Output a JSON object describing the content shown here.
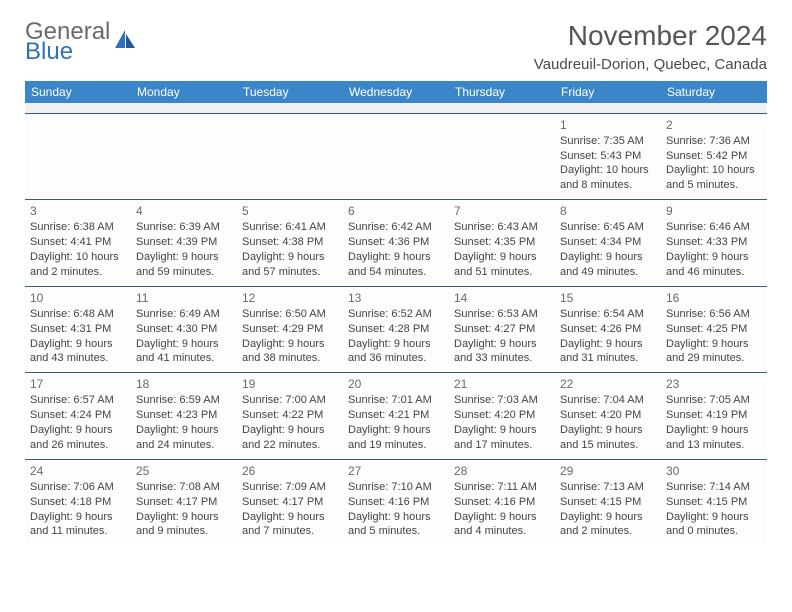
{
  "logo": {
    "line1": "General",
    "line2": "Blue"
  },
  "title": "November 2024",
  "location": "Vaudreuil-Dorion, Quebec, Canada",
  "colors": {
    "header_bg": "#3b86c8",
    "header_text": "#ffffff",
    "border": "#3b5a78",
    "logo_gray": "#6a6a6a",
    "logo_blue": "#2e72b8",
    "cell_bg": "#fdfdfd",
    "spacer_bg": "#eef0f2",
    "body_text": "#444444"
  },
  "fonts": {
    "title_size_pt": 21,
    "location_size_pt": 11,
    "header_size_pt": 9,
    "cell_size_pt": 8
  },
  "weekdays": [
    "Sunday",
    "Monday",
    "Tuesday",
    "Wednesday",
    "Thursday",
    "Friday",
    "Saturday"
  ],
  "weeks": [
    [
      null,
      null,
      null,
      null,
      null,
      {
        "n": "1",
        "sunrise": "7:35 AM",
        "sunset": "5:43 PM",
        "daylight": "10 hours and 8 minutes."
      },
      {
        "n": "2",
        "sunrise": "7:36 AM",
        "sunset": "5:42 PM",
        "daylight": "10 hours and 5 minutes."
      }
    ],
    [
      {
        "n": "3",
        "sunrise": "6:38 AM",
        "sunset": "4:41 PM",
        "daylight": "10 hours and 2 minutes."
      },
      {
        "n": "4",
        "sunrise": "6:39 AM",
        "sunset": "4:39 PM",
        "daylight": "9 hours and 59 minutes."
      },
      {
        "n": "5",
        "sunrise": "6:41 AM",
        "sunset": "4:38 PM",
        "daylight": "9 hours and 57 minutes."
      },
      {
        "n": "6",
        "sunrise": "6:42 AM",
        "sunset": "4:36 PM",
        "daylight": "9 hours and 54 minutes."
      },
      {
        "n": "7",
        "sunrise": "6:43 AM",
        "sunset": "4:35 PM",
        "daylight": "9 hours and 51 minutes."
      },
      {
        "n": "8",
        "sunrise": "6:45 AM",
        "sunset": "4:34 PM",
        "daylight": "9 hours and 49 minutes."
      },
      {
        "n": "9",
        "sunrise": "6:46 AM",
        "sunset": "4:33 PM",
        "daylight": "9 hours and 46 minutes."
      }
    ],
    [
      {
        "n": "10",
        "sunrise": "6:48 AM",
        "sunset": "4:31 PM",
        "daylight": "9 hours and 43 minutes."
      },
      {
        "n": "11",
        "sunrise": "6:49 AM",
        "sunset": "4:30 PM",
        "daylight": "9 hours and 41 minutes."
      },
      {
        "n": "12",
        "sunrise": "6:50 AM",
        "sunset": "4:29 PM",
        "daylight": "9 hours and 38 minutes."
      },
      {
        "n": "13",
        "sunrise": "6:52 AM",
        "sunset": "4:28 PM",
        "daylight": "9 hours and 36 minutes."
      },
      {
        "n": "14",
        "sunrise": "6:53 AM",
        "sunset": "4:27 PM",
        "daylight": "9 hours and 33 minutes."
      },
      {
        "n": "15",
        "sunrise": "6:54 AM",
        "sunset": "4:26 PM",
        "daylight": "9 hours and 31 minutes."
      },
      {
        "n": "16",
        "sunrise": "6:56 AM",
        "sunset": "4:25 PM",
        "daylight": "9 hours and 29 minutes."
      }
    ],
    [
      {
        "n": "17",
        "sunrise": "6:57 AM",
        "sunset": "4:24 PM",
        "daylight": "9 hours and 26 minutes."
      },
      {
        "n": "18",
        "sunrise": "6:59 AM",
        "sunset": "4:23 PM",
        "daylight": "9 hours and 24 minutes."
      },
      {
        "n": "19",
        "sunrise": "7:00 AM",
        "sunset": "4:22 PM",
        "daylight": "9 hours and 22 minutes."
      },
      {
        "n": "20",
        "sunrise": "7:01 AM",
        "sunset": "4:21 PM",
        "daylight": "9 hours and 19 minutes."
      },
      {
        "n": "21",
        "sunrise": "7:03 AM",
        "sunset": "4:20 PM",
        "daylight": "9 hours and 17 minutes."
      },
      {
        "n": "22",
        "sunrise": "7:04 AM",
        "sunset": "4:20 PM",
        "daylight": "9 hours and 15 minutes."
      },
      {
        "n": "23",
        "sunrise": "7:05 AM",
        "sunset": "4:19 PM",
        "daylight": "9 hours and 13 minutes."
      }
    ],
    [
      {
        "n": "24",
        "sunrise": "7:06 AM",
        "sunset": "4:18 PM",
        "daylight": "9 hours and 11 minutes."
      },
      {
        "n": "25",
        "sunrise": "7:08 AM",
        "sunset": "4:17 PM",
        "daylight": "9 hours and 9 minutes."
      },
      {
        "n": "26",
        "sunrise": "7:09 AM",
        "sunset": "4:17 PM",
        "daylight": "9 hours and 7 minutes."
      },
      {
        "n": "27",
        "sunrise": "7:10 AM",
        "sunset": "4:16 PM",
        "daylight": "9 hours and 5 minutes."
      },
      {
        "n": "28",
        "sunrise": "7:11 AM",
        "sunset": "4:16 PM",
        "daylight": "9 hours and 4 minutes."
      },
      {
        "n": "29",
        "sunrise": "7:13 AM",
        "sunset": "4:15 PM",
        "daylight": "9 hours and 2 minutes."
      },
      {
        "n": "30",
        "sunrise": "7:14 AM",
        "sunset": "4:15 PM",
        "daylight": "9 hours and 0 minutes."
      }
    ]
  ],
  "labels": {
    "sunrise": "Sunrise:",
    "sunset": "Sunset:",
    "daylight": "Daylight:"
  }
}
